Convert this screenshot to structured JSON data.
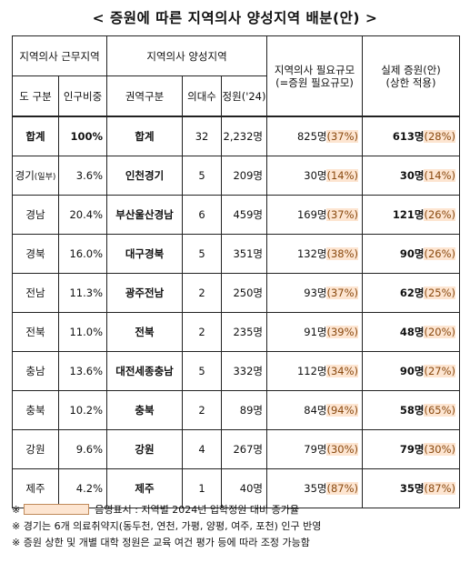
{
  "title": "< 증원에 따른 지역의사 양성지역 배분(안) >",
  "header": {
    "group1": "지역의사 근무지역",
    "group2": "지역의사 양성지역",
    "need": "지역의사 필요규모\n(=증원 필요규모)",
    "actual": "실제 증원(안)\n(상한 적용)",
    "col_region": "도 구분",
    "col_pop": "인구비중",
    "col_zone": "권역구분",
    "col_schools": "의대수",
    "col_quota": "정원('24)"
  },
  "rows": [
    {
      "region": "합계",
      "region_note": "",
      "pop": "100%",
      "zone": "합계",
      "schools": "32",
      "quota": "2,232명",
      "need_n": "825명",
      "need_p": "(37%)",
      "act_n": "613명",
      "act_p": "(28%)"
    },
    {
      "region": "경기",
      "region_note": "(일부)",
      "pop": "3.6%",
      "zone": "인천경기",
      "schools": "5",
      "quota": "209명",
      "need_n": "30명",
      "need_p": "(14%)",
      "act_n": "30명",
      "act_p": "(14%)"
    },
    {
      "region": "경남",
      "region_note": "",
      "pop": "20.4%",
      "zone": "부산울산경남",
      "schools": "6",
      "quota": "459명",
      "need_n": "169명",
      "need_p": "(37%)",
      "act_n": "121명",
      "act_p": "(26%)"
    },
    {
      "region": "경북",
      "region_note": "",
      "pop": "16.0%",
      "zone": "대구경북",
      "schools": "5",
      "quota": "351명",
      "need_n": "132명",
      "need_p": "(38%)",
      "act_n": "90명",
      "act_p": "(26%)"
    },
    {
      "region": "전남",
      "region_note": "",
      "pop": "11.3%",
      "zone": "광주전남",
      "schools": "2",
      "quota": "250명",
      "need_n": "93명",
      "need_p": "(37%)",
      "act_n": "62명",
      "act_p": "(25%)"
    },
    {
      "region": "전북",
      "region_note": "",
      "pop": "11.0%",
      "zone": "전북",
      "schools": "2",
      "quota": "235명",
      "need_n": "91명",
      "need_p": "(39%)",
      "act_n": "48명",
      "act_p": "(20%)"
    },
    {
      "region": "충남",
      "region_note": "",
      "pop": "13.6%",
      "zone": "대전세종충남",
      "schools": "5",
      "quota": "332명",
      "need_n": "112명",
      "need_p": "(34%)",
      "act_n": "90명",
      "act_p": "(27%)"
    },
    {
      "region": "충북",
      "region_note": "",
      "pop": "10.2%",
      "zone": "충북",
      "schools": "2",
      "quota": "89명",
      "need_n": "84명",
      "need_p": "(94%)",
      "act_n": "58명",
      "act_p": "(65%)"
    },
    {
      "region": "강원",
      "region_note": "",
      "pop": "9.6%",
      "zone": "강원",
      "schools": "4",
      "quota": "267명",
      "need_n": "79명",
      "need_p": "(30%)",
      "act_n": "79명",
      "act_p": "(30%)"
    },
    {
      "region": "제주",
      "region_note": "",
      "pop": "4.2%",
      "zone": "제주",
      "schools": "1",
      "quota": "40명",
      "need_n": "35명",
      "need_p": "(87%)",
      "act_n": "35명",
      "act_p": "(87%)"
    }
  ],
  "notes": {
    "n1_mark": "※",
    "n1_text": "음영표시 : 지역별 2024년 입학정원 대비 증가율",
    "n2": "※ 경기는 6개 의료취약지(동두천, 연천, 가평, 양평, 여주, 포천) 인구 반영",
    "n3": "※ 증원 상한 및 개별 대학 정원은 교육 여건 평가 등에 따라 조정 가능함"
  },
  "colors": {
    "highlight": "#fde5d1",
    "percent_text": "#8a4a10"
  }
}
